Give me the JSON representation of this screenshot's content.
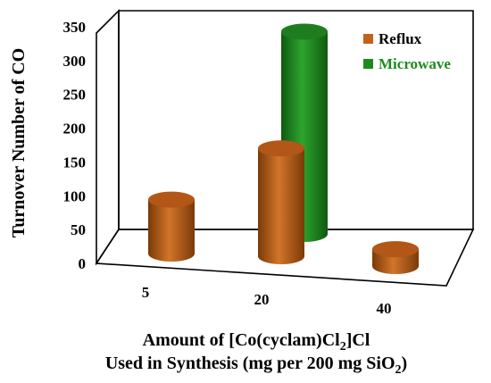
{
  "chart_data": {
    "type": "bar",
    "categories": [
      "5",
      "20",
      "40"
    ],
    "series": [
      {
        "name": "Reflux",
        "values": [
          80,
          160,
          25
        ],
        "color": "#c3631a"
      },
      {
        "name": "Microwave",
        "values": [
          null,
          300,
          null
        ],
        "color": "#1e8a1e"
      }
    ],
    "ylabel": "Turnover Number of CO",
    "xlabel_line1_pre": "Amount of [Co(cyclam)Cl",
    "xlabel_line1_sub": "2",
    "xlabel_line1_post": "]Cl",
    "xlabel_line2_pre": "Used in Synthesis (mg per 200 mg SiO",
    "xlabel_line2_sub": "2",
    "xlabel_line2_post": ")",
    "yticks": [
      "0",
      "50",
      "100",
      "150",
      "200",
      "250",
      "300",
      "350"
    ],
    "ylim": [
      0,
      350
    ],
    "legend_position": "top-right",
    "style": "3d-cylinder"
  }
}
